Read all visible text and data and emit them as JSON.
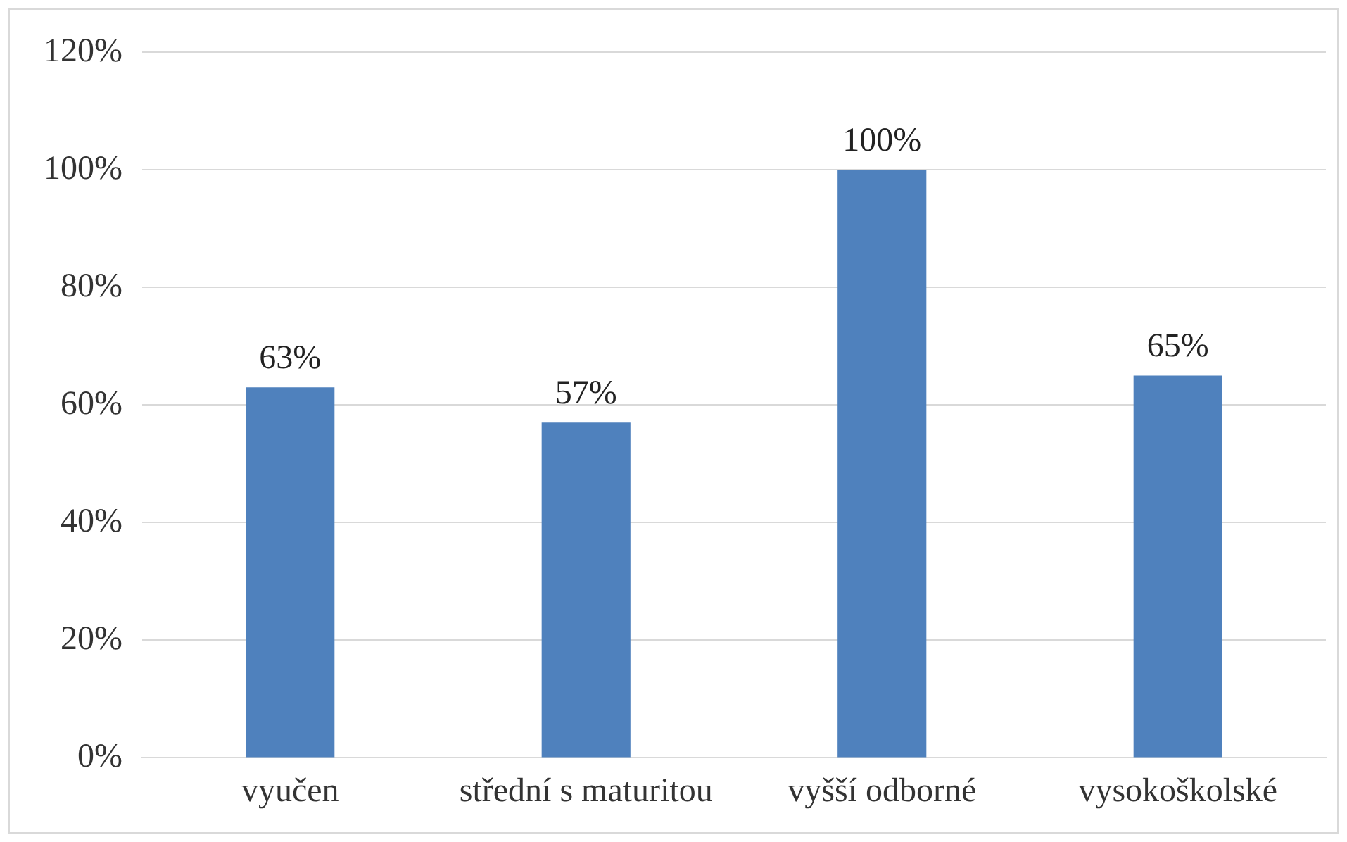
{
  "chart_data": {
    "type": "bar",
    "categories": [
      "vyučen",
      "střední s maturitou",
      "vyšší odborné",
      "vysokoškolské"
    ],
    "values": [
      63,
      57,
      100,
      65
    ],
    "color": "#4f81bd",
    "value_labels": [
      "63%",
      "57%",
      "100%",
      "65%"
    ],
    "ylim": [
      0,
      120
    ],
    "yticks": [
      {
        "value": 0,
        "label": "0%"
      },
      {
        "value": 20,
        "label": "20%"
      },
      {
        "value": 40,
        "label": "40%"
      },
      {
        "value": 60,
        "label": "60%"
      },
      {
        "value": 80,
        "label": "80%"
      },
      {
        "value": 100,
        "label": "100%"
      },
      {
        "value": 120,
        "label": "120%"
      }
    ],
    "grid": "y",
    "legend": false
  }
}
